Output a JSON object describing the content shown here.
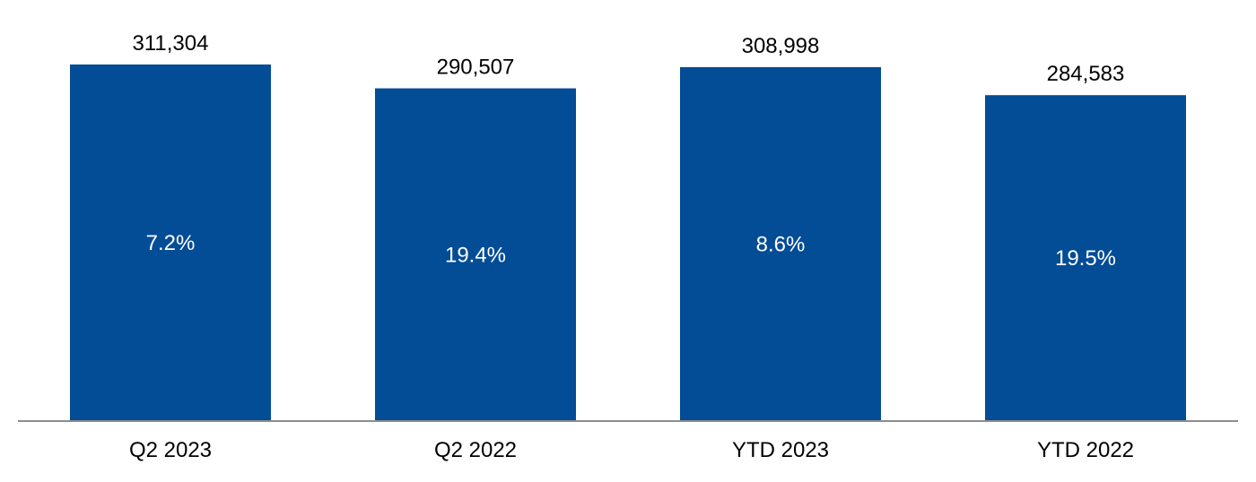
{
  "chart_data": {
    "type": "bar",
    "title": "",
    "xlabel": "",
    "ylabel": "",
    "categories": [
      "Q2 2023",
      "Q2 2022",
      "YTD 2023",
      "YTD 2022"
    ],
    "values": [
      311304,
      290507,
      308998,
      284583
    ],
    "value_labels": [
      "311,304",
      "290,507",
      "308,998",
      "284,583"
    ],
    "inner_labels": [
      "7.2%",
      "19.4%",
      "8.6%",
      "19.5%"
    ],
    "ylim": [
      0,
      311304
    ],
    "grid": false,
    "legend": "none",
    "colors": {
      "bar": "#034C96",
      "axis": "#8C8C8C",
      "inner_text": "#FFFFFF",
      "outer_text": "#000000"
    }
  }
}
